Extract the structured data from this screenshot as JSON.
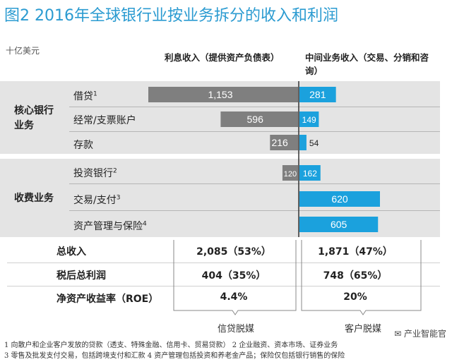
{
  "title": "图2 2016年全球银行业按业务拆分的收入和利润",
  "unit": "十亿美元",
  "column_headers": {
    "interest": "利息收入（提供资产负债表）",
    "intermediary": "中间业务收入（交易、分销和咨询）"
  },
  "groups": [
    {
      "label": "核心银行业务"
    },
    {
      "label": "收费业务"
    }
  ],
  "chart_data": {
    "type": "bar",
    "orientation": "horizontal",
    "categories": [
      "借贷1",
      "经常/支票账户",
      "存款",
      "投资银行2",
      "交易/支付3",
      "资产管理与保险4"
    ],
    "series": [
      {
        "name": "利息收入（提供资产负债表）",
        "values": [
          1153,
          596,
          216,
          120,
          0,
          0
        ],
        "color": "#7f7f7f"
      },
      {
        "name": "中间业务收入（交易、分销和咨询）",
        "values": [
          281,
          149,
          54,
          162,
          620,
          605
        ],
        "color": "#1ba1dd"
      }
    ],
    "labels_interest": [
      "1,153",
      "596",
      "216",
      "120",
      "",
      ""
    ],
    "labels_intermediary": [
      "281",
      "149",
      "54",
      "162",
      "620",
      "605"
    ],
    "category_text": [
      "借贷",
      "经常/支票账户",
      "存款",
      "投资银行",
      "交易/支付",
      "资产管理与保险"
    ],
    "category_notes": [
      "1",
      "",
      "",
      "2",
      "3",
      "4"
    ]
  },
  "summary": [
    {
      "label": "总收入",
      "interest": "2,085（53%）",
      "intermediary": "1,871（47%）"
    },
    {
      "label": "税后总利润",
      "interest": "404（35%）",
      "intermediary": "748（65%）"
    },
    {
      "label": "净资产收益率（ROE）",
      "interest": "4.4%",
      "intermediary": "20%"
    }
  ],
  "bracket_labels": {
    "interest": "信贷脱媒",
    "intermediary": "客户脱媒"
  },
  "footnotes": [
    "1 向散户和企业客户发放的贷款（透支、特殊金融、信用卡、贸易贷款） 2 企业融资、资本市场、证券业务",
    "3 零售及批发支付交易，包括跨境支付和汇款 4 资产管理包括投资和养老金产品；保险仅包括银行销售的保险"
  ],
  "watermark": "产业智能官",
  "colors": {
    "accent": "#2b9bd1",
    "interest_bar": "#7f7f7f",
    "intermediary_bar": "#1ba1dd",
    "band": "#e4e4e4"
  }
}
